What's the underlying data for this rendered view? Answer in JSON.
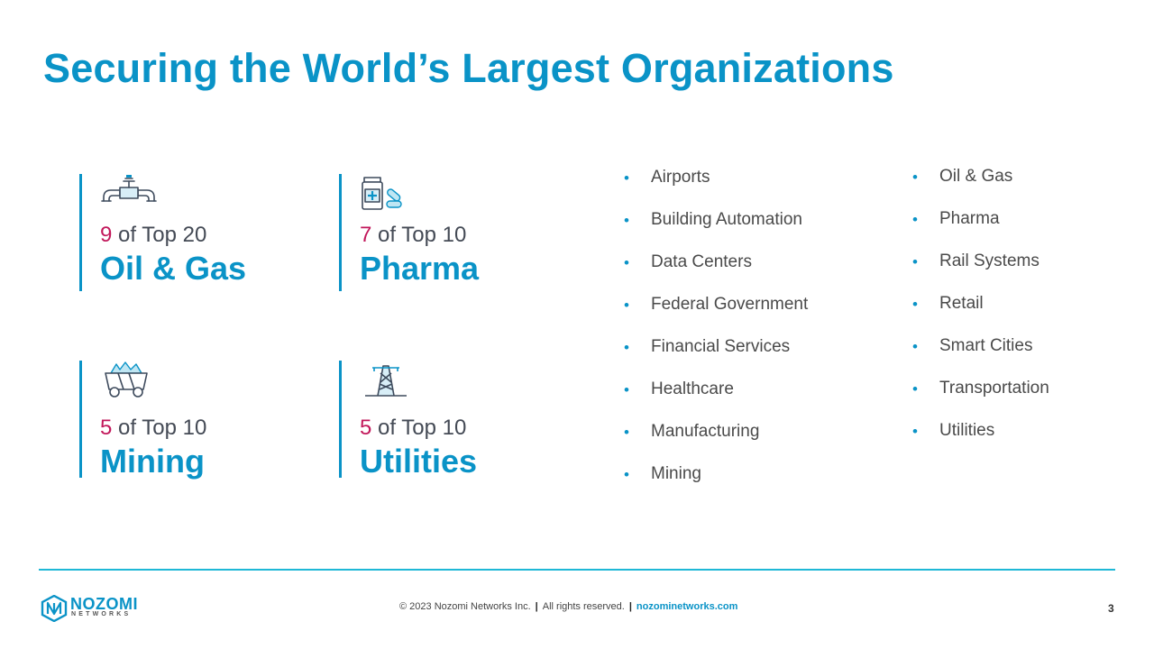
{
  "slide": {
    "title": "Securing the World’s Largest Organizations"
  },
  "stats": [
    {
      "num": "9",
      "rest": " of Top 20",
      "sector": "Oil & Gas",
      "icon": "pipeline-icon"
    },
    {
      "num": "7",
      "rest": " of Top 10",
      "sector": "Pharma",
      "icon": "medicine-icon"
    },
    {
      "num": "5",
      "rest": " of Top 10",
      "sector": "Mining",
      "icon": "mining-cart-icon"
    },
    {
      "num": "5",
      "rest": " of Top 10",
      "sector": "Utilities",
      "icon": "power-tower-icon"
    }
  ],
  "industries_left": [
    "Airports",
    "Building Automation",
    "Data Centers",
    "Federal Government",
    "Financial Services",
    "Healthcare",
    "Manufacturing",
    "Mining"
  ],
  "industries_right": [
    "Oil & Gas",
    "Pharma",
    "Rail Systems",
    "Retail",
    "Smart Cities",
    "Transportation",
    "Utilities"
  ],
  "footer": {
    "logo_word": "NOZOMI",
    "logo_sub": "NETWORKS",
    "copyright": "© 2023 Nozomi Networks Inc.",
    "rights": "All rights reserved.",
    "link": "nozominetworks.com",
    "separator": "|",
    "page": "3"
  },
  "colors": {
    "accent": "#0a93c7",
    "number": "#c2185b",
    "rule": "#1fb8d6"
  }
}
